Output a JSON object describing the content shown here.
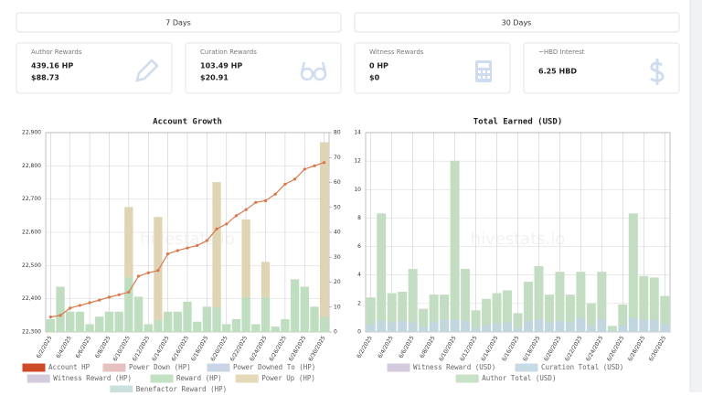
{
  "buttons": [
    "7 Days",
    "30 Days"
  ],
  "cards": [
    {
      "label": "Author Rewards",
      "lines": [
        "439.16 HP",
        "$88.73"
      ]
    },
    {
      "label": "Curation Rewards",
      "lines": [
        "103.49 HP",
        "$20.91"
      ]
    },
    {
      "label": "Witness Rewards",
      "lines": [
        "0 HP",
        "$0"
      ]
    },
    {
      "label": "~HBD Interest",
      "lines": [
        "6.25 HBD"
      ]
    }
  ],
  "chart_data": [
    {
      "type": "bar",
      "title": "Account Growth",
      "watermark": "hivestats.io",
      "categories": [
        "6/2/2025",
        null,
        "6/4/2025",
        null,
        "6/6/2025",
        null,
        "6/8/2025",
        null,
        "6/10/2025",
        null,
        "6/12/2025",
        null,
        "6/14/2025",
        null,
        "6/16/2025",
        null,
        "6/18/2025",
        null,
        "6/20/2025",
        null,
        "6/22/2025",
        null,
        "6/24/2025",
        null,
        "6/26/2025",
        null,
        "6/28/2025",
        null,
        "6/30/2025"
      ],
      "ylim": [
        22300,
        22900
      ],
      "yticks": [
        {
          "value": 22300,
          "label": "22,300"
        },
        {
          "value": 22400,
          "label": "22,400"
        },
        {
          "value": 22500,
          "label": "22,500"
        },
        {
          "value": 22600,
          "label": "22,600"
        },
        {
          "value": 22700,
          "label": "22,700"
        },
        {
          "value": 22800,
          "label": "22,800"
        },
        {
          "value": 22900,
          "label": "22,900"
        }
      ],
      "y2lim": [
        0,
        80
      ],
      "y2ticks": [
        0,
        10,
        20,
        30,
        40,
        50,
        60,
        70,
        80
      ],
      "grid": true,
      "series": [
        {
          "name": "Account HP",
          "type": "line",
          "color": "#d9774a",
          "legend_color": "#e0522a",
          "values": [
            22345,
            22350,
            22372,
            22380,
            22388,
            22396,
            22405,
            22412,
            22420,
            22468,
            22478,
            22485,
            22535,
            22545,
            22553,
            22560,
            22575,
            22610,
            22625,
            22650,
            22668,
            22690,
            22695,
            22715,
            22745,
            22760,
            22790,
            22800,
            22810
          ]
        },
        {
          "name": "Power Down (HP)",
          "type": "bar",
          "axis": "y2",
          "color": "#f9d2d2",
          "values": [
            0,
            0,
            0,
            0,
            0,
            0,
            0,
            0,
            0,
            0,
            0,
            0,
            0,
            0,
            0,
            0,
            0,
            0,
            0,
            0,
            0,
            0,
            0,
            0,
            0,
            0,
            0,
            0,
            0
          ]
        },
        {
          "name": "Power Downed To (HP)",
          "type": "bar",
          "axis": "y2",
          "color": "#dbe6fb",
          "values": [
            0,
            0,
            0,
            0,
            0,
            0,
            0,
            0,
            0,
            0,
            0,
            0,
            0,
            0,
            0,
            0,
            0,
            0,
            0,
            0,
            0,
            0,
            0,
            0,
            0,
            0,
            0,
            0,
            0
          ]
        },
        {
          "name": "Witness Reward (HP)",
          "type": "bar",
          "axis": "y2",
          "color": "#e6dcf0",
          "values": [
            0,
            0,
            0,
            0,
            0,
            0,
            0,
            0,
            0,
            0,
            0,
            0,
            0,
            0,
            0,
            0,
            0,
            0,
            0,
            0,
            0,
            0,
            0,
            0,
            0,
            0,
            0,
            0,
            0
          ]
        },
        {
          "name": "Reward (HP)",
          "type": "bar",
          "axis": "y2",
          "color": "#d4f5d4",
          "values": [
            5,
            18,
            8,
            8,
            3,
            6,
            8,
            8,
            22,
            14,
            3,
            5,
            8,
            8,
            12,
            4,
            10,
            10,
            3,
            5,
            14,
            3,
            14,
            2,
            5,
            21,
            18,
            10,
            6
          ]
        },
        {
          "name": "Power Up (HP)",
          "type": "bar",
          "axis": "y2",
          "color": "#f8edc8",
          "values": [
            0,
            0,
            0,
            0,
            0,
            0,
            0,
            0,
            28,
            0,
            0,
            41,
            0,
            0,
            0,
            0,
            0,
            50,
            0,
            0,
            31,
            0,
            14,
            0,
            0,
            0,
            0,
            0,
            70
          ]
        },
        {
          "name": "Benefactor Reward (HP)",
          "type": "bar",
          "axis": "y2",
          "color": "#ddf4f0",
          "values": [
            0,
            0,
            0,
            0,
            0,
            0,
            0,
            0,
            0,
            0,
            0,
            0,
            0,
            0,
            0,
            0,
            0,
            0,
            0,
            0,
            0,
            0,
            0,
            0,
            0,
            0,
            0,
            0,
            0
          ]
        }
      ]
    },
    {
      "type": "bar",
      "title": "Total Earned (USD)",
      "watermark": "hivestats.io",
      "categories": [
        "6/2/2025",
        null,
        "6/4/2025",
        null,
        "6/6/2025",
        null,
        "6/8/2025",
        null,
        "6/10/2025",
        null,
        "6/12/2025",
        null,
        "6/14/2025",
        null,
        "6/16/2025",
        null,
        "6/18/2025",
        null,
        "6/20/2025",
        null,
        "6/22/2025",
        null,
        "6/24/2025",
        null,
        "6/26/2025",
        null,
        "6/28/2025",
        null,
        "6/30/2025"
      ],
      "ylim": [
        0,
        14
      ],
      "yticks": [
        0,
        2,
        4,
        6,
        8,
        10,
        12,
        14
      ],
      "grid": true,
      "series": [
        {
          "name": "Witness Reward (USD)",
          "type": "bar",
          "color": "#e6dcf0",
          "values": [
            0,
            0,
            0,
            0,
            0,
            0,
            0,
            0,
            0,
            0,
            0,
            0,
            0,
            0,
            0,
            0,
            0,
            0,
            0,
            0,
            0,
            0,
            0,
            0,
            0,
            0,
            0,
            0,
            0
          ]
        },
        {
          "name": "Curation Total (USD)",
          "type": "bar",
          "color": "#d8eef8",
          "values": [
            0.6,
            0.8,
            0.7,
            0.8,
            0.7,
            0.4,
            0.7,
            0.9,
            0.9,
            0.8,
            0.3,
            0.5,
            0.6,
            0.7,
            0.3,
            0.8,
            0.9,
            0.7,
            0.8,
            0.7,
            1.0,
            0.5,
            0.9,
            0.1,
            0.5,
            1.0,
            0.9,
            0.9,
            0.6
          ]
        },
        {
          "name": "Author Total (USD)",
          "type": "bar",
          "color": "#d8f6d8",
          "values": [
            1.8,
            7.5,
            2.0,
            2.0,
            3.7,
            1.2,
            1.9,
            1.7,
            11.1,
            3.6,
            1.2,
            1.8,
            2.1,
            2.2,
            1.0,
            2.7,
            3.7,
            1.9,
            3.4,
            1.9,
            3.2,
            1.5,
            3.3,
            0.3,
            1.4,
            7.3,
            3.0,
            2.9,
            1.9
          ]
        }
      ]
    }
  ]
}
